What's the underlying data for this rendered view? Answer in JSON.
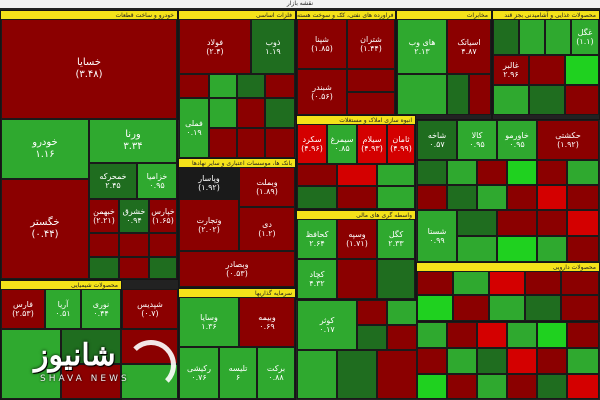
{
  "title": "نقشه بازار",
  "colors": {
    "dark_red": "#8b0000",
    "red": "#b50d0d",
    "bright_red": "#d40000",
    "dark_green": "#1f6d1f",
    "green": "#2fa92f",
    "bright_green": "#1fd11f",
    "black": "#1a1a1a",
    "header": "#f4e21a"
  },
  "sectors": [
    {
      "name": "خودرو و ساخت قطعات"
    },
    {
      "name": "فلزات اساسی"
    },
    {
      "name": "فراورده های نفتی، کک و سوخت هسته"
    },
    {
      "name": "مخابرات"
    },
    {
      "name": "محصولات غذایی و آشامیدنی بجز قند"
    },
    {
      "name": "محصولات شیمیایی"
    },
    {
      "name": "بانک ها، موسسات اعتباری و سایر نهادها"
    },
    {
      "name": "انبوه سازی املاک و مستغلات"
    },
    {
      "name": "سرمایه گذاریها"
    },
    {
      "name": "واسطه گری های مالی"
    },
    {
      "name": "محصولات دارویی"
    }
  ],
  "tiles": [
    {
      "name": "خسایا",
      "value": "(۳.۴۸)"
    },
    {
      "name": "فولاد",
      "value": "(۲.۴)"
    },
    {
      "name": "ذوب",
      "value": "۱.۱۹"
    },
    {
      "name": "شتران",
      "value": "(۱.۴۴)"
    },
    {
      "name": "شپنا",
      "value": "(۱.۸۵)"
    },
    {
      "name": "شبندر",
      "value": "(۰.۵۶)"
    },
    {
      "name": "اسیاتک",
      "value": "۴.۸۷"
    },
    {
      "name": "های وب",
      "value": "۲.۱۳"
    },
    {
      "name": "غگل",
      "value": "(۱.۱)"
    },
    {
      "name": "غالبر",
      "value": "۲.۹۶"
    },
    {
      "name": "خودرو",
      "value": "۱.۱۶"
    },
    {
      "name": "ورنا",
      "value": "۳.۳۴"
    },
    {
      "name": "خمحرکه",
      "value": "۲.۴۵"
    },
    {
      "name": "خزامیا",
      "value": "۰.۹۵"
    },
    {
      "name": "خگستر",
      "value": "(۰.۴۴)"
    },
    {
      "name": "خبهمن",
      "value": "(۲.۲۱)"
    },
    {
      "name": "خپارس",
      "value": "(۱.۶۵)"
    },
    {
      "name": "خشرق",
      "value": "۰.۹۴"
    },
    {
      "name": "فملی",
      "value": "۰.۱۹"
    },
    {
      "name": "وبملت",
      "value": "(۱.۸۹)"
    },
    {
      "name": "وپاسار",
      "value": "(۱.۹۲)"
    },
    {
      "name": "وتجارت",
      "value": "(۲.۰۲)"
    },
    {
      "name": "وبصادر",
      "value": "(۰.۵۳)"
    },
    {
      "name": "سکرد",
      "value": "(۴.۹۶)"
    },
    {
      "name": "سیمرغ",
      "value": "۰.۸۵"
    },
    {
      "name": "سیلام",
      "value": "(۴.۹۳)"
    },
    {
      "name": "ثامان",
      "value": "(۴.۹۹)"
    },
    {
      "name": "شاخه",
      "value": "۰.۵۷"
    },
    {
      "name": "کالا",
      "value": "۰.۹۵"
    },
    {
      "name": "خاورمو",
      "value": "۰.۹۵"
    },
    {
      "name": "حکشتی",
      "value": "(۱.۹۲)"
    },
    {
      "name": "فارس",
      "value": "(۲.۵۳)"
    },
    {
      "name": "آریا",
      "value": "۰.۵۱"
    },
    {
      "name": "نوری",
      "value": "۰.۴۴"
    },
    {
      "name": "شپدیس",
      "value": "(۰.۷)"
    },
    {
      "name": "کگل",
      "value": "۲.۳۳"
    },
    {
      "name": "کچاد",
      "value": "۴.۳۲"
    },
    {
      "name": "وسایا",
      "value": "۱.۳۶"
    },
    {
      "name": "رکیشی",
      "value": "۰.۷۶"
    },
    {
      "name": "تلیسه",
      "value": "۶"
    },
    {
      "name": "شستا",
      "value": "۰.۹۹"
    },
    {
      "name": "وسپه",
      "value": "(۱.۷۱)"
    },
    {
      "name": "وبیمه",
      "value": "۰.۶۹"
    },
    {
      "name": "برکت",
      "value": "۰.۸۸"
    },
    {
      "name": "کحافظ",
      "value": "۲.۶۴"
    },
    {
      "name": "کوثر",
      "value": "۰.۱۷"
    },
    {
      "name": "دی",
      "value": "(۱.۲)"
    }
  ],
  "watermark": {
    "logo_text": "شانیوز",
    "caption": "SHAVA NEWS"
  }
}
